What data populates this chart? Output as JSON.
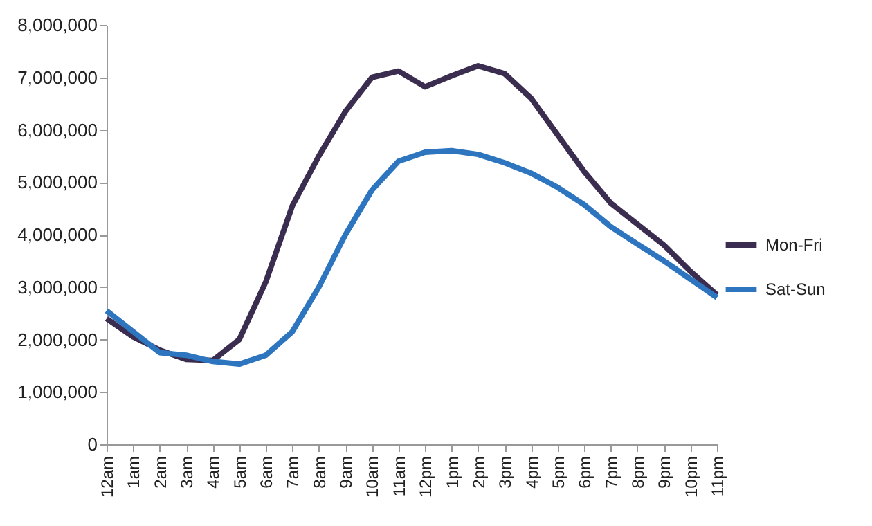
{
  "chart_data": {
    "type": "line",
    "categories": [
      "12am",
      "1am",
      "2am",
      "3am",
      "4am",
      "5am",
      "6am",
      "7am",
      "8am",
      "9am",
      "10am",
      "11am",
      "12pm",
      "1pm",
      "2pm",
      "3pm",
      "4pm",
      "5pm",
      "6pm",
      "7pm",
      "8pm",
      "9pm",
      "10pm",
      "11pm"
    ],
    "series": [
      {
        "name": "Mon-Fri",
        "color": "#3b2d4f",
        "values": [
          2400000,
          2050000,
          1800000,
          1620000,
          1600000,
          2000000,
          3100000,
          4550000,
          5500000,
          6350000,
          7000000,
          7120000,
          6820000,
          7030000,
          7220000,
          7070000,
          6600000,
          5900000,
          5200000,
          4600000,
          4200000,
          3800000,
          3300000,
          2850000
        ]
      },
      {
        "name": "Sat-Sun",
        "color": "#2e75c0",
        "values": [
          2550000,
          2150000,
          1750000,
          1700000,
          1580000,
          1530000,
          1700000,
          2150000,
          3000000,
          4000000,
          4850000,
          5400000,
          5570000,
          5600000,
          5530000,
          5370000,
          5170000,
          4900000,
          4570000,
          4150000,
          3820000,
          3500000,
          3150000,
          2800000
        ]
      }
    ],
    "ylim": [
      0,
      8000000
    ],
    "yticks": [
      0,
      {
        "value": 1000000,
        "label": "1,000,000"
      },
      {
        "value": 2000000,
        "label": "2,000,000"
      },
      {
        "value": 3000000,
        "label": "3,000,000"
      },
      {
        "value": 4000000,
        "label": "4,000,000"
      },
      {
        "value": 5000000,
        "label": "5,000,000"
      },
      {
        "value": 6000000,
        "label": "6,000,000"
      },
      {
        "value": 7000000,
        "label": "7,000,000"
      },
      {
        "value": 8000000,
        "label": "8,000,000"
      }
    ],
    "grid": false,
    "legend": "right",
    "marker": "none",
    "line_style": "solid"
  }
}
